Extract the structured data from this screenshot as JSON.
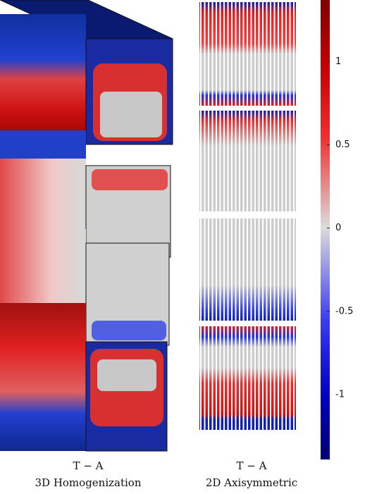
{
  "colorbar": {
    "range": [
      -1.39,
      1.37
    ],
    "ticks": [
      1,
      0.5,
      0,
      -0.5,
      -1
    ]
  },
  "panels": [
    {
      "method": "T − A",
      "label": "3D Homogenization"
    },
    {
      "method": "T − A",
      "label": "2D Axisymmetric"
    }
  ]
}
